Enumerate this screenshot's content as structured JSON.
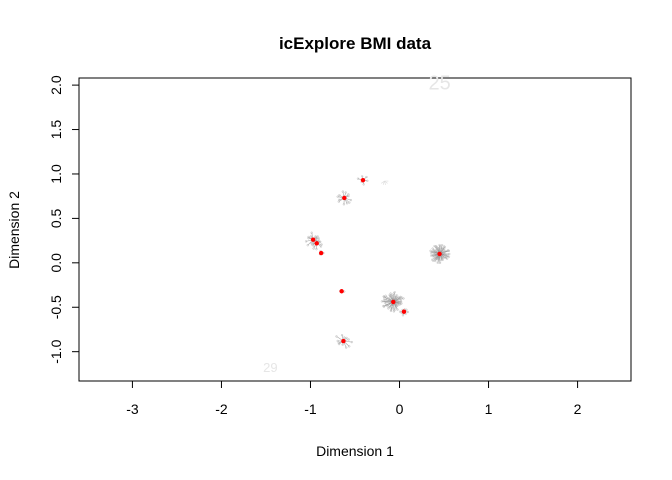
{
  "chart_data": {
    "type": "scatter",
    "title": "icExplore BMI data",
    "xlabel": "Dimension 1",
    "ylabel": "Dimension 2",
    "xlim": [
      -3.6,
      2.6
    ],
    "ylim": [
      -1.33,
      2.08
    ],
    "xticks": [
      -3,
      -2,
      -1,
      0,
      1,
      2
    ],
    "yticks": [
      -1.0,
      -0.5,
      0.0,
      0.5,
      1.0,
      1.5,
      2.0
    ],
    "ytick_labels": [
      "-1.0",
      "-0.5",
      "0.0",
      "0.5",
      "1.0",
      "1.5",
      "2.0"
    ],
    "grid": false,
    "legend": null,
    "point_color": "#ff0000",
    "spoke_color": "#999999",
    "clusters": [
      {
        "x": 0.45,
        "y": 0.1,
        "spokes": 60,
        "spread": 0.12
      },
      {
        "x": -0.07,
        "y": -0.44,
        "spokes": 50,
        "spread": 0.13
      },
      {
        "x": -0.97,
        "y": 0.26,
        "spokes": 14,
        "spread": 0.11
      },
      {
        "x": -0.93,
        "y": 0.22,
        "spokes": 10,
        "spread": 0.08
      },
      {
        "x": -0.62,
        "y": 0.73,
        "spokes": 12,
        "spread": 0.1
      },
      {
        "x": -0.63,
        "y": -0.88,
        "spokes": 12,
        "spread": 0.1
      },
      {
        "x": 0.05,
        "y": -0.55,
        "spokes": 8,
        "spread": 0.06
      },
      {
        "x": -0.41,
        "y": 0.93,
        "spokes": 6,
        "spread": 0.06
      },
      {
        "x": -0.88,
        "y": 0.11,
        "spokes": 3,
        "spread": 0.04
      },
      {
        "x": -0.65,
        "y": -0.32,
        "spokes": 2,
        "spread": 0.03
      }
    ],
    "faint_labels": [
      {
        "text": "25",
        "x": 0.45,
        "y": 1.95,
        "size": "large"
      },
      {
        "text": "29",
        "x": -1.45,
        "y": -1.23,
        "size": "small"
      }
    ],
    "faint_marks": [
      {
        "x": -0.17,
        "y": 0.92
      }
    ]
  }
}
